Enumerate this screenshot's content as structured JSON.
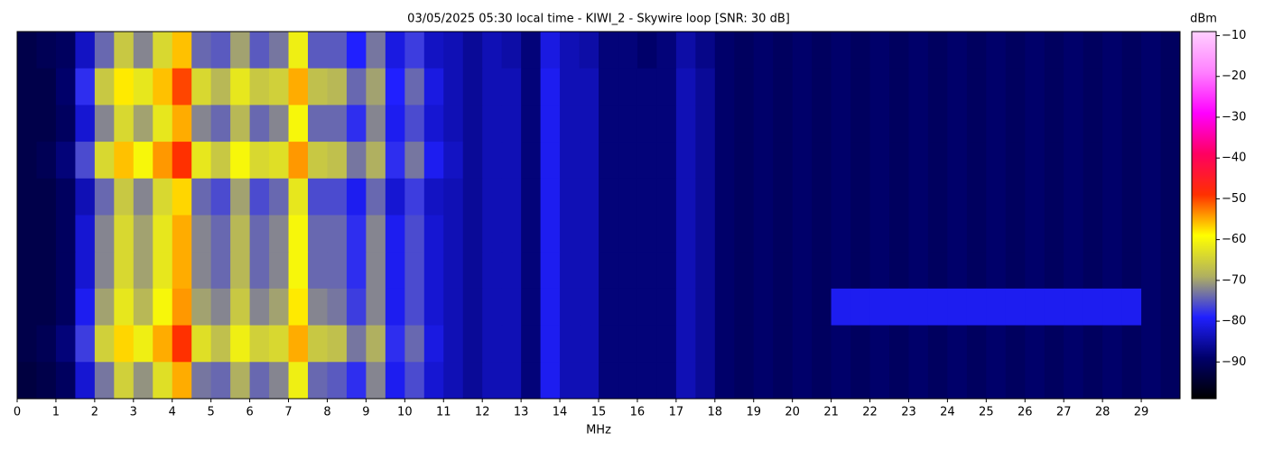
{
  "chart_data": {
    "type": "heatmap",
    "title": "03/05/2025 05:30 local time - KIWI_2 - Skywire loop [SNR: 30 dB]",
    "xlabel": "MHz",
    "colorbar_label": "dBm",
    "xlim": [
      0,
      30
    ],
    "xticks": [
      0,
      1,
      2,
      3,
      4,
      5,
      6,
      7,
      8,
      9,
      10,
      11,
      12,
      13,
      14,
      15,
      16,
      17,
      18,
      19,
      20,
      21,
      22,
      23,
      24,
      25,
      26,
      27,
      28,
      29
    ],
    "zlim": [
      -99,
      -9
    ],
    "zticks": [
      {
        "value": -90,
        "label": "−90"
      },
      {
        "value": -80,
        "label": "−80"
      },
      {
        "value": -70,
        "label": "−70"
      },
      {
        "value": -60,
        "label": "−60"
      },
      {
        "value": -50,
        "label": "−50"
      },
      {
        "value": -40,
        "label": "−40"
      },
      {
        "value": -30,
        "label": "−30"
      },
      {
        "value": -20,
        "label": "−20"
      },
      {
        "value": -10,
        "label": "−10"
      }
    ],
    "colors": [
      "#000000",
      "#00006a",
      "#2020ff",
      "#b0b060",
      "#ffff00",
      "#ff3000",
      "#ff0060",
      "#ff00ff",
      "#ff80ff",
      "#ffd0ff"
    ],
    "values": [
      [
        -92,
        -91,
        -90,
        -83,
        -74,
        -66,
        -72,
        -64,
        -56,
        -74,
        -75,
        -70,
        -75,
        -73,
        -61,
        -75,
        -75,
        -79,
        -73,
        -81,
        -77,
        -83,
        -84,
        -86,
        -84,
        -85,
        -88,
        -81,
        -84,
        -85,
        -88,
        -88,
        -89,
        -88,
        -85,
        -87,
        -89,
        -90,
        -89,
        -90,
        -89,
        -90,
        -89,
        -90,
        -89,
        -90,
        -89,
        -90,
        -89,
        -90,
        -89,
        -90,
        -89,
        -90,
        -89,
        -90,
        -89,
        -90,
        -89,
        -90
      ],
      [
        -92,
        -92,
        -89,
        -78,
        -66,
        -58,
        -62,
        -56,
        -50,
        -64,
        -68,
        -62,
        -66,
        -65,
        -55,
        -67,
        -68,
        -74,
        -70,
        -79,
        -74,
        -81,
        -84,
        -86,
        -84,
        -84,
        -88,
        -80,
        -84,
        -84,
        -88,
        -88,
        -88,
        -88,
        -84,
        -86,
        -89,
        -90,
        -89,
        -90,
        -89,
        -90,
        -89,
        -90,
        -89,
        -90,
        -89,
        -90,
        -89,
        -90,
        -89,
        -90,
        -89,
        -90,
        -89,
        -90,
        -89,
        -90,
        -89,
        -90
      ],
      [
        -92,
        -92,
        -90,
        -82,
        -72,
        -64,
        -70,
        -62,
        -55,
        -72,
        -74,
        -68,
        -74,
        -72,
        -60,
        -74,
        -74,
        -78,
        -72,
        -80,
        -76,
        -82,
        -84,
        -86,
        -84,
        -84,
        -88,
        -80,
        -84,
        -84,
        -88,
        -88,
        -88,
        -88,
        -84,
        -86,
        -89,
        -90,
        -89,
        -90,
        -89,
        -90,
        -89,
        -90,
        -89,
        -90,
        -89,
        -90,
        -89,
        -90,
        -89,
        -90,
        -89,
        -90,
        -89,
        -90,
        -89,
        -90,
        -89,
        -90
      ],
      [
        -92,
        -91,
        -88,
        -76,
        -64,
        -56,
        -60,
        -54,
        -49,
        -62,
        -66,
        -60,
        -64,
        -63,
        -54,
        -66,
        -67,
        -73,
        -69,
        -78,
        -73,
        -80,
        -83,
        -86,
        -84,
        -84,
        -88,
        -80,
        -84,
        -84,
        -88,
        -88,
        -88,
        -88,
        -84,
        -86,
        -89,
        -90,
        -89,
        -90,
        -89,
        -90,
        -89,
        -90,
        -89,
        -90,
        -89,
        -90,
        -89,
        -90,
        -89,
        -90,
        -89,
        -90,
        -89,
        -90,
        -89,
        -90,
        -89,
        -90
      ],
      [
        -92,
        -92,
        -90,
        -84,
        -74,
        -66,
        -72,
        -64,
        -57,
        -74,
        -76,
        -70,
        -76,
        -74,
        -62,
        -76,
        -76,
        -80,
        -74,
        -82,
        -77,
        -83,
        -84,
        -86,
        -84,
        -84,
        -88,
        -80,
        -84,
        -84,
        -88,
        -88,
        -88,
        -88,
        -84,
        -86,
        -89,
        -90,
        -89,
        -90,
        -89,
        -90,
        -89,
        -90,
        -89,
        -90,
        -89,
        -90,
        -89,
        -90,
        -89,
        -90,
        -89,
        -90,
        -89,
        -90,
        -89,
        -90,
        -89,
        -90
      ],
      [
        -92,
        -92,
        -90,
        -82,
        -72,
        -64,
        -70,
        -62,
        -55,
        -72,
        -74,
        -68,
        -74,
        -72,
        -60,
        -74,
        -74,
        -78,
        -72,
        -80,
        -76,
        -82,
        -84,
        -86,
        -84,
        -84,
        -88,
        -80,
        -84,
        -84,
        -88,
        -88,
        -88,
        -88,
        -84,
        -86,
        -89,
        -90,
        -89,
        -90,
        -89,
        -90,
        -89,
        -90,
        -89,
        -90,
        -89,
        -90,
        -89,
        -90,
        -89,
        -90,
        -89,
        -90,
        -89,
        -90,
        -89,
        -90,
        -89,
        -90
      ],
      [
        -92,
        -92,
        -90,
        -82,
        -72,
        -64,
        -70,
        -62,
        -55,
        -72,
        -74,
        -68,
        -74,
        -72,
        -60,
        -74,
        -74,
        -78,
        -72,
        -80,
        -76,
        -82,
        -84,
        -86,
        -84,
        -84,
        -88,
        -80,
        -84,
        -84,
        -88,
        -88,
        -88,
        -88,
        -84,
        -86,
        -89,
        -90,
        -89,
        -90,
        -89,
        -90,
        -89,
        -90,
        -89,
        -90,
        -89,
        -90,
        -89,
        -90,
        -89,
        -90,
        -89,
        -90,
        -89,
        -90,
        -89,
        -90,
        -89,
        -90
      ],
      [
        -92,
        -92,
        -90,
        -80,
        -70,
        -62,
        -68,
        -60,
        -54,
        -70,
        -72,
        -66,
        -72,
        -70,
        -58,
        -72,
        -73,
        -77,
        -72,
        -80,
        -76,
        -82,
        -84,
        -86,
        -84,
        -84,
        -88,
        -80,
        -84,
        -84,
        -88,
        -88,
        -88,
        -88,
        -84,
        -86,
        -89,
        -90,
        -89,
        -90,
        -89,
        -90,
        -80,
        -80,
        -80,
        -80,
        -80,
        -80,
        -80,
        -80,
        -80,
        -80,
        -80,
        -80,
        -80,
        -80,
        -80,
        -80,
        -89,
        -90
      ],
      [
        -92,
        -91,
        -88,
        -77,
        -65,
        -57,
        -61,
        -55,
        -49,
        -63,
        -67,
        -61,
        -65,
        -64,
        -55,
        -66,
        -67,
        -73,
        -69,
        -78,
        -74,
        -81,
        -84,
        -86,
        -84,
        -84,
        -88,
        -80,
        -84,
        -84,
        -88,
        -88,
        -88,
        -88,
        -84,
        -86,
        -89,
        -90,
        -89,
        -90,
        -89,
        -90,
        -89,
        -90,
        -89,
        -90,
        -89,
        -90,
        -89,
        -90,
        -89,
        -90,
        -89,
        -90,
        -89,
        -90,
        -89,
        -90,
        -89,
        -90
      ],
      [
        -93,
        -92,
        -90,
        -82,
        -73,
        -65,
        -71,
        -63,
        -55,
        -73,
        -74,
        -69,
        -74,
        -72,
        -61,
        -74,
        -75,
        -78,
        -72,
        -80,
        -76,
        -82,
        -84,
        -86,
        -84,
        -84,
        -88,
        -80,
        -84,
        -84,
        -88,
        -88,
        -88,
        -88,
        -84,
        -86,
        -89,
        -90,
        -89,
        -90,
        -89,
        -90,
        -89,
        -90,
        -89,
        -90,
        -89,
        -90,
        -89,
        -90,
        -89,
        -90,
        -89,
        -90,
        -89,
        -90,
        -89,
        -90,
        -89,
        -90
      ]
    ]
  }
}
